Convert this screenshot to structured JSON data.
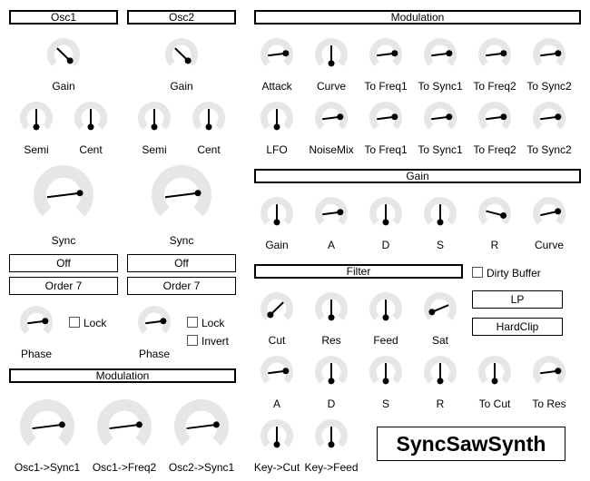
{
  "headers": {
    "osc1": "Osc1",
    "osc2": "Osc2",
    "modulation_top": "Modulation",
    "gain": "Gain",
    "filter": "Filter",
    "modulation_bottom": "Modulation"
  },
  "knob_labels": {
    "osc1_gain": "Gain",
    "osc2_gain": "Gain",
    "osc1_semi": "Semi",
    "osc1_cent": "Cent",
    "osc2_semi": "Semi",
    "osc2_cent": "Cent",
    "osc1_sync": "Sync",
    "osc2_sync": "Sync",
    "osc1_phase": "Phase",
    "osc2_phase": "Phase",
    "mod_attack": "Attack",
    "mod_curve": "Curve",
    "mod_env_to_freq1": "To Freq1",
    "mod_env_to_sync1": "To Sync1",
    "mod_env_to_freq2": "To Freq2",
    "mod_env_to_sync2": "To Sync2",
    "mod_lfo": "LFO",
    "mod_noisemix": "NoiseMix",
    "mod_lfo_to_freq1": "To Freq1",
    "mod_lfo_to_sync1": "To Sync1",
    "mod_lfo_to_freq2": "To Freq2",
    "mod_lfo_to_sync2": "To Sync2",
    "gain_gain": "Gain",
    "gain_a": "A",
    "gain_d": "D",
    "gain_s": "S",
    "gain_r": "R",
    "gain_curve": "Curve",
    "filter_cut": "Cut",
    "filter_res": "Res",
    "filter_feed": "Feed",
    "filter_sat": "Sat",
    "filter_a": "A",
    "filter_d": "D",
    "filter_s": "S",
    "filter_r": "R",
    "filter_to_cut": "To Cut",
    "filter_to_res": "To Res",
    "filter_key_cut": "Key->Cut",
    "filter_key_feed": "Key->Feed",
    "osc1_to_sync1": "Osc1->Sync1",
    "osc1_to_freq2": "Osc1->Freq2",
    "osc2_to_sync1": "Osc2->Sync1"
  },
  "selectors": {
    "osc1_mode": "Off",
    "osc2_mode": "Off",
    "osc1_order": "Order 7",
    "osc2_order": "Order 7",
    "filter_type": "LP",
    "filter_clip": "HardClip"
  },
  "checkboxes": {
    "osc1_lock": "Lock",
    "osc2_lock": "Lock",
    "osc2_invert": "Invert",
    "dirty_buffer": "Dirty Buffer"
  },
  "brand": {
    "title": "SyncSawSynth"
  },
  "knob_values": {
    "osc1_gain": 0.33,
    "osc2_gain": 0.33,
    "osc1_semi": 0.5,
    "osc1_cent": 0.5,
    "osc2_semi": 0.5,
    "osc2_cent": 0.5,
    "osc1_sync": 0.14,
    "osc2_sync": 0.14,
    "osc1_phase": 0.14,
    "osc2_phase": 0.14,
    "mod_attack": 0.14,
    "mod_curve": 0.5,
    "mod_env_to_freq1": 0.14,
    "mod_env_to_sync1": 0.14,
    "mod_env_to_freq2": 0.14,
    "mod_env_to_sync2": 0.14,
    "mod_lfo": 0.5,
    "mod_noisemix": 0.14,
    "mod_lfo_to_freq1": 0.14,
    "mod_lfo_to_sync1": 0.14,
    "mod_lfo_to_freq2": 0.14,
    "mod_lfo_to_sync2": 0.14,
    "gain_gain": 0.5,
    "gain_a": 0.14,
    "gain_d": 0.5,
    "gain_s": 0.5,
    "gain_r": 0.22,
    "gain_curve": 0.12,
    "filter_cut": 0.67,
    "filter_res": 0.5,
    "filter_feed": 0.5,
    "filter_sat": 0.75,
    "filter_a": 0.14,
    "filter_d": 0.5,
    "filter_s": 0.5,
    "filter_r": 0.5,
    "filter_to_cut": 0.5,
    "filter_to_res": 0.14,
    "filter_key_cut": 0.5,
    "filter_key_feed": 0.5,
    "osc1_to_sync1": 0.14,
    "osc1_to_freq2": 0.14,
    "osc2_to_sync1": 0.14
  },
  "colors": {
    "track": "#e6e6e6",
    "pointer": "#000000"
  }
}
